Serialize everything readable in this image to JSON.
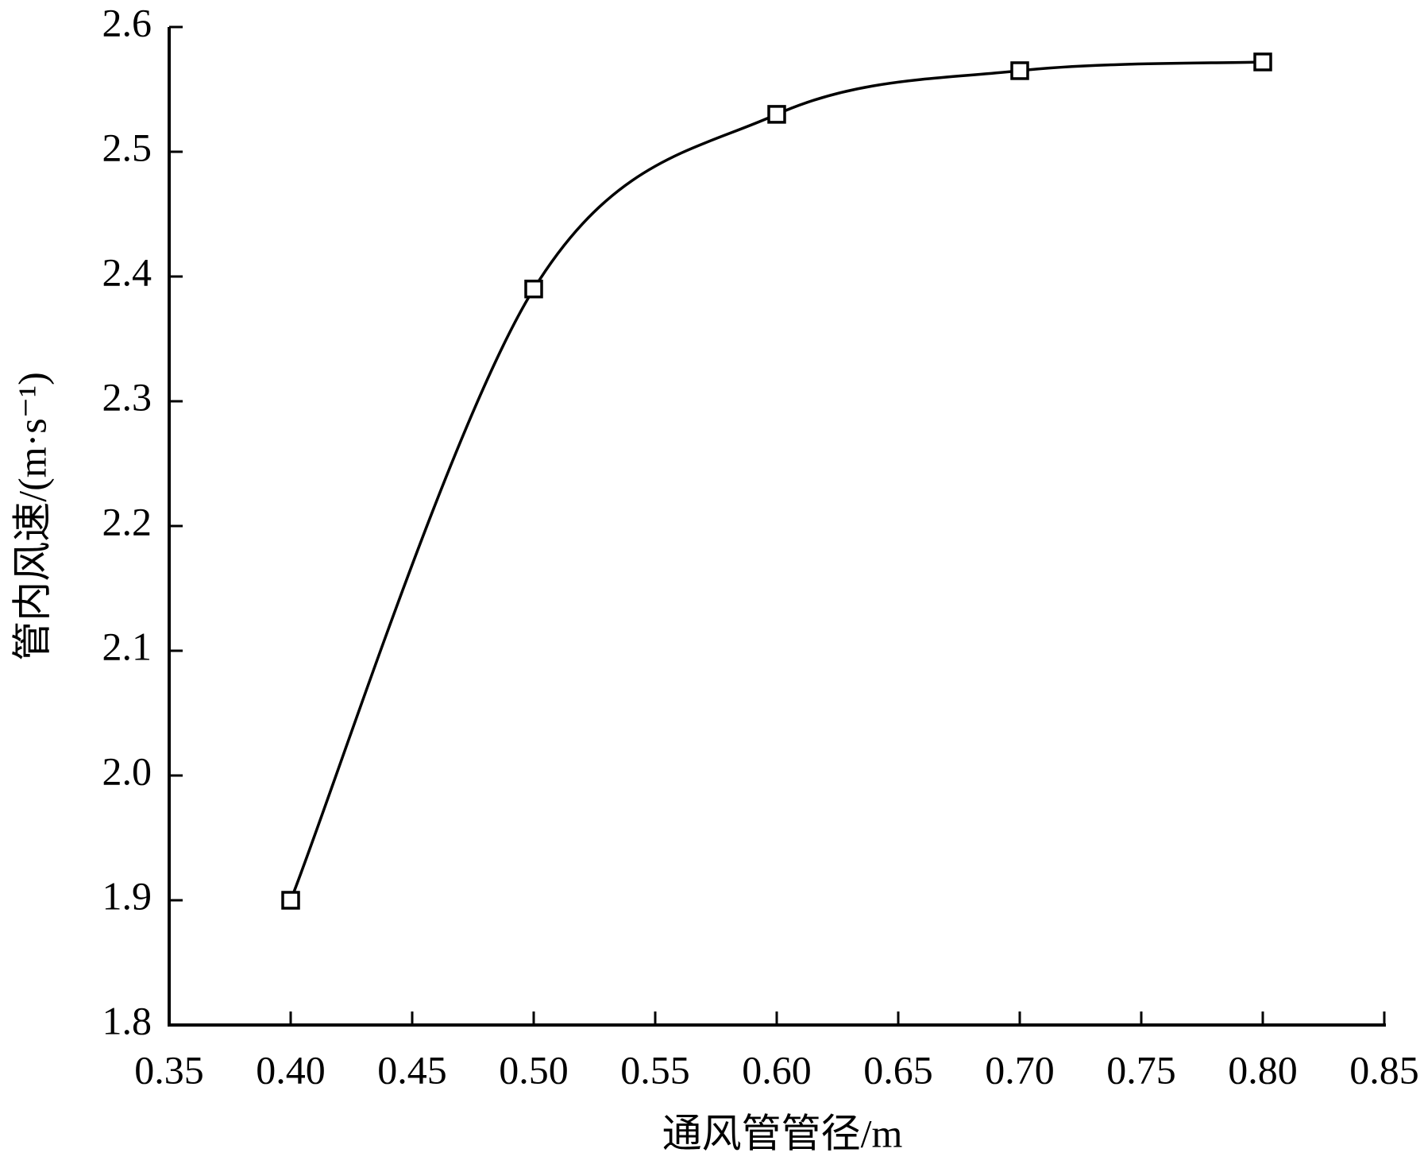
{
  "chart_data": {
    "type": "line",
    "xlabel": "通风管管径/m",
    "ylabel": "管内风速/(m·s⁻¹)",
    "x": [
      0.4,
      0.5,
      0.6,
      0.7,
      0.8
    ],
    "values": [
      1.9,
      2.39,
      2.53,
      2.565,
      2.572
    ],
    "color": "#000000",
    "marker": "square",
    "smooth": true,
    "xlim": [
      0.35,
      0.85
    ],
    "xticks": [
      0.35,
      {
        "value": 0.4,
        "label": "0.40"
      },
      0.45,
      {
        "value": 0.5,
        "label": "0.50"
      },
      0.55,
      {
        "value": 0.6,
        "label": "0.60"
      },
      0.65,
      {
        "value": 0.7,
        "label": "0.70"
      },
      0.75,
      {
        "value": 0.8,
        "label": "0.80"
      },
      0.85
    ],
    "ylim": [
      1.8,
      2.6
    ],
    "yticks": [
      1.8,
      1.9,
      {
        "value": 2.0,
        "label": "2.0"
      },
      2.1,
      2.2,
      2.3,
      2.4,
      2.5,
      2.6
    ],
    "grid": false
  }
}
